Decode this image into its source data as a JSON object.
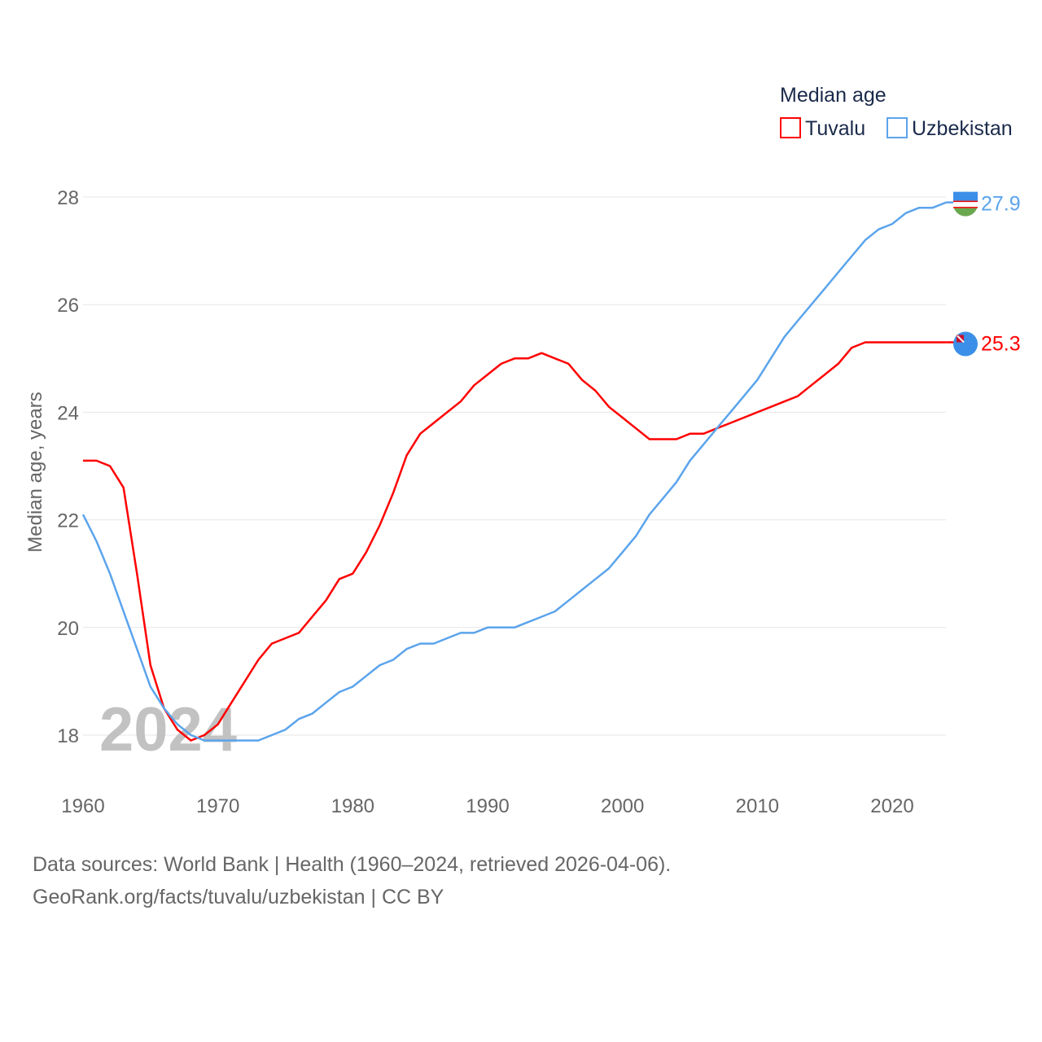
{
  "chart_data": {
    "type": "line",
    "title": "",
    "xlabel": "",
    "ylabel": "Median age, years",
    "xlim": [
      1960,
      2024
    ],
    "ylim": [
      17.2,
      28
    ],
    "x_ticks": [
      1960,
      1970,
      1980,
      1990,
      2000,
      2010,
      2020
    ],
    "y_ticks": [
      18,
      20,
      22,
      24,
      26,
      28
    ],
    "grid": true,
    "legend": {
      "title": "Median age",
      "placement": "top-right"
    },
    "year_watermark": "2024",
    "x": [
      1960,
      1961,
      1962,
      1963,
      1964,
      1965,
      1966,
      1967,
      1968,
      1969,
      1970,
      1971,
      1972,
      1973,
      1974,
      1975,
      1976,
      1977,
      1978,
      1979,
      1980,
      1981,
      1982,
      1983,
      1984,
      1985,
      1986,
      1987,
      1988,
      1989,
      1990,
      1991,
      1992,
      1993,
      1994,
      1995,
      1996,
      1997,
      1998,
      1999,
      2000,
      2001,
      2002,
      2003,
      2004,
      2005,
      2006,
      2007,
      2008,
      2009,
      2010,
      2011,
      2012,
      2013,
      2014,
      2015,
      2016,
      2017,
      2018,
      2019,
      2020,
      2021,
      2022,
      2023,
      2024
    ],
    "series": [
      {
        "name": "Tuvalu",
        "color": "#ff0000",
        "end_label": "25.3",
        "values": [
          23.1,
          23.1,
          23.0,
          22.6,
          21.0,
          19.3,
          18.5,
          18.1,
          17.9,
          18.0,
          18.2,
          18.6,
          19.0,
          19.4,
          19.7,
          19.8,
          19.9,
          20.2,
          20.5,
          20.9,
          21.0,
          21.4,
          21.9,
          22.5,
          23.2,
          23.6,
          23.8,
          24.0,
          24.2,
          24.5,
          24.7,
          24.9,
          25.0,
          25.0,
          25.1,
          25.0,
          24.9,
          24.6,
          24.4,
          24.1,
          23.9,
          23.7,
          23.5,
          23.5,
          23.5,
          23.6,
          23.6,
          23.7,
          23.8,
          23.9,
          24.0,
          24.1,
          24.2,
          24.3,
          24.5,
          24.7,
          24.9,
          25.2,
          25.3,
          25.3,
          25.3,
          25.3,
          25.3,
          25.3,
          25.3
        ]
      },
      {
        "name": "Uzbekistan",
        "color": "#5ba4ec",
        "end_label": "27.9",
        "values": [
          22.1,
          21.6,
          21.0,
          20.3,
          19.6,
          18.9,
          18.5,
          18.2,
          18.0,
          17.9,
          17.9,
          17.9,
          17.9,
          17.9,
          18.0,
          18.1,
          18.3,
          18.4,
          18.6,
          18.8,
          18.9,
          19.1,
          19.3,
          19.4,
          19.6,
          19.7,
          19.7,
          19.8,
          19.9,
          19.9,
          20.0,
          20.0,
          20.0,
          20.1,
          20.2,
          20.3,
          20.5,
          20.7,
          20.9,
          21.1,
          21.4,
          21.7,
          22.1,
          22.4,
          22.7,
          23.1,
          23.4,
          23.7,
          24.0,
          24.3,
          24.6,
          25.0,
          25.4,
          25.7,
          26.0,
          26.3,
          26.6,
          26.9,
          27.2,
          27.4,
          27.5,
          27.7,
          27.8,
          27.8,
          27.9
        ]
      }
    ]
  },
  "footer": {
    "line1": "Data sources: World Bank | Health (1960–2024, retrieved 2026-04-06).",
    "line2": "GeoRank.org/facts/tuvalu/uzbekistan | CC BY"
  }
}
